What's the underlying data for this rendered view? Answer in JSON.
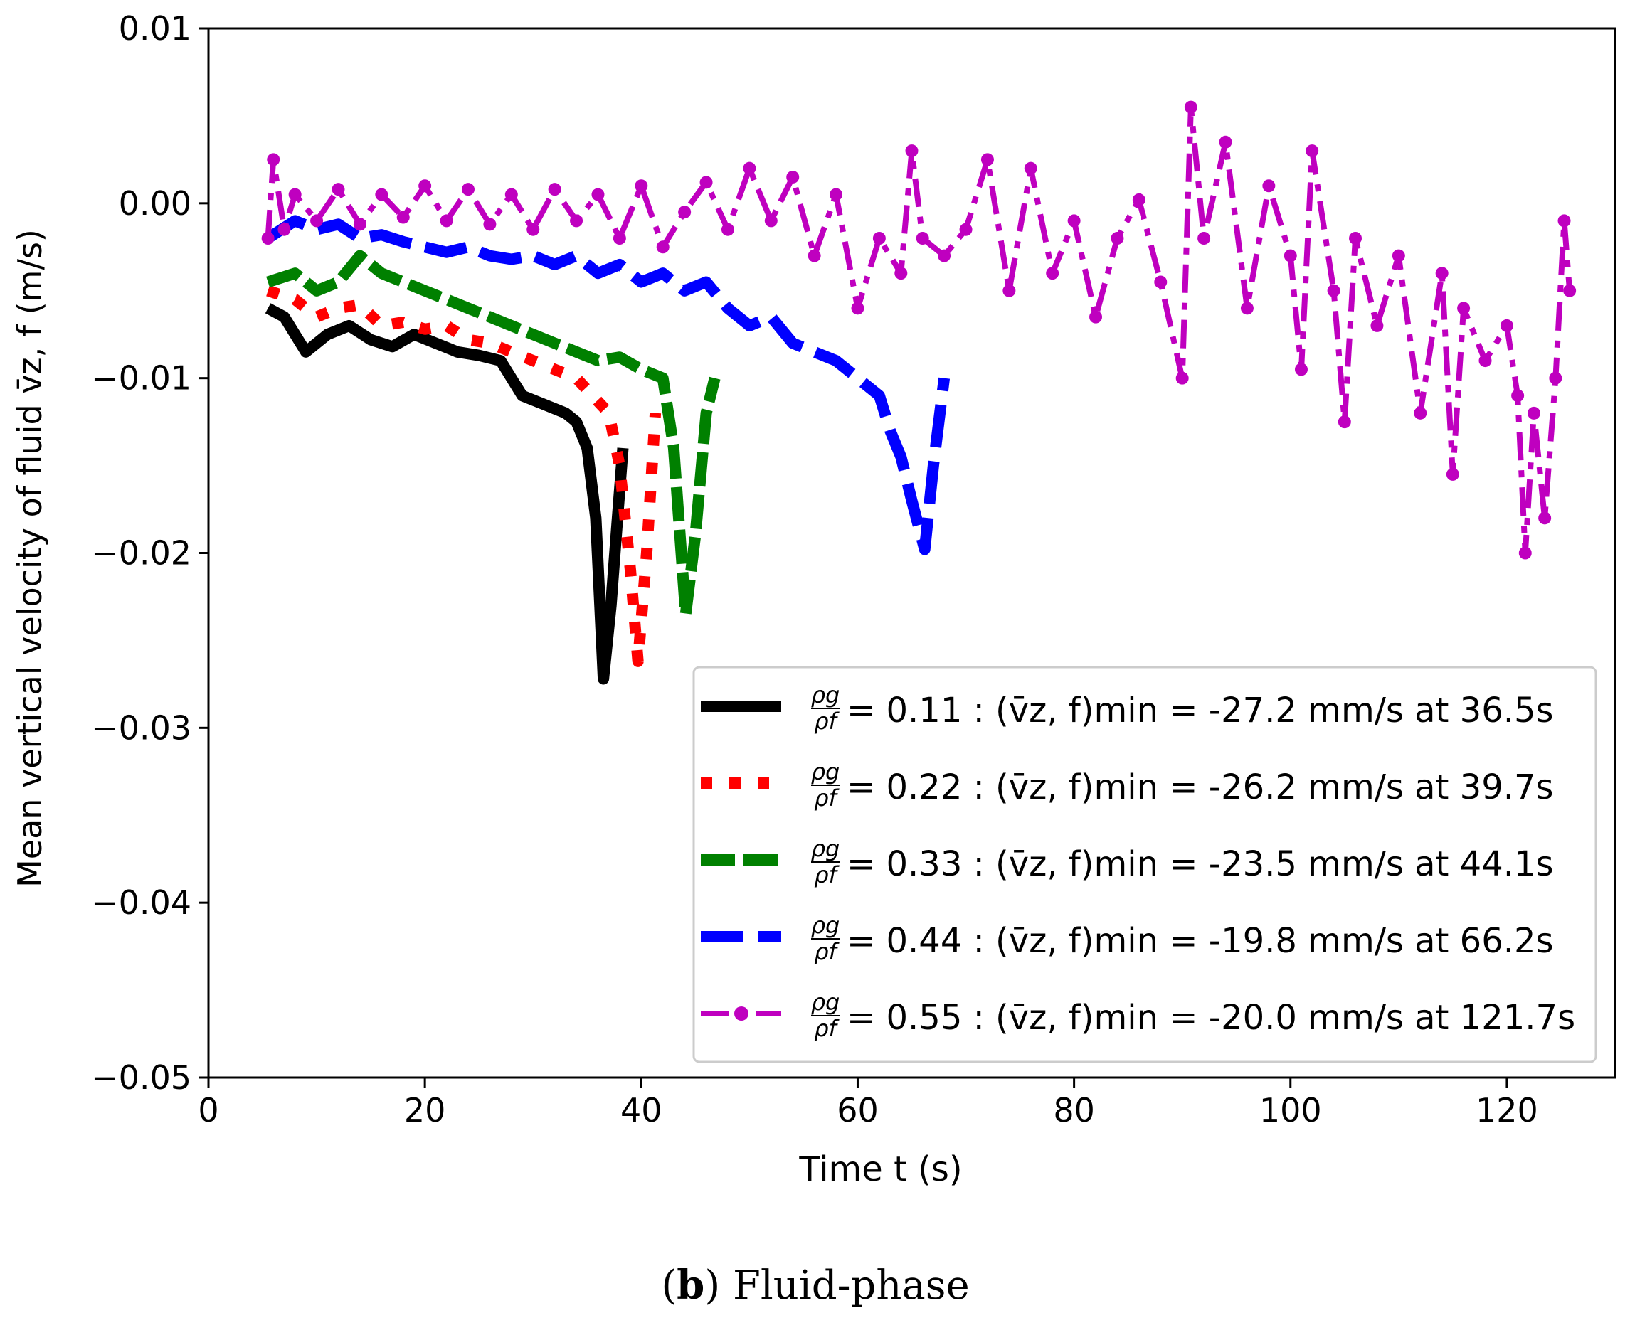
{
  "chart_data": {
    "type": "line",
    "xlabel": "Time t (s)",
    "ylabel": "Mean vertical velocity of fluid v̄z, f (m/s)",
    "xlim": [
      0,
      130
    ],
    "ylim": [
      -0.05,
      0.01
    ],
    "x_ticks": [
      0,
      20,
      40,
      60,
      80,
      100,
      120
    ],
    "y_ticks": [
      0.01,
      0.0,
      -0.01,
      -0.02,
      -0.03,
      -0.04,
      -0.05
    ],
    "x_tick_labels": [
      "0",
      "20",
      "40",
      "60",
      "80",
      "100",
      "120"
    ],
    "y_tick_labels": [
      "0.01",
      "0.00",
      "−0.01",
      "−0.02",
      "−0.03",
      "−0.04",
      "−0.05"
    ],
    "grid": false,
    "legend_position": "lower-right",
    "series": [
      {
        "name": "ρg/ρf = 0.11 : (v̄z,f)min = -27.2 mm/s at 36.5s",
        "ratio": "0.11",
        "vmin": "-27.2 mm/s",
        "tmin": "36.5s",
        "color": "#000000",
        "style": "solid",
        "points": [
          [
            5.5,
            -0.006
          ],
          [
            7,
            -0.0065
          ],
          [
            9,
            -0.0085
          ],
          [
            11,
            -0.0075
          ],
          [
            13,
            -0.007
          ],
          [
            15,
            -0.0078
          ],
          [
            17,
            -0.0082
          ],
          [
            19,
            -0.0075
          ],
          [
            21,
            -0.008
          ],
          [
            23,
            -0.0085
          ],
          [
            25,
            -0.0087
          ],
          [
            27,
            -0.009
          ],
          [
            29,
            -0.011
          ],
          [
            31,
            -0.0115
          ],
          [
            33,
            -0.012
          ],
          [
            34,
            -0.0125
          ],
          [
            35,
            -0.014
          ],
          [
            35.8,
            -0.018
          ],
          [
            36.5,
            -0.0272
          ],
          [
            37.2,
            -0.023
          ],
          [
            37.8,
            -0.018
          ],
          [
            38.3,
            -0.014
          ]
        ]
      },
      {
        "name": "ρg/ρf = 0.22 : (v̄z,f)min = -26.2 mm/s at 39.7s",
        "ratio": "0.22",
        "vmin": "-26.2 mm/s",
        "tmin": "39.7s",
        "color": "#ff0000",
        "style": "dotted",
        "points": [
          [
            5.5,
            -0.005
          ],
          [
            8,
            -0.0055
          ],
          [
            10,
            -0.0065
          ],
          [
            12,
            -0.006
          ],
          [
            14,
            -0.0058
          ],
          [
            16,
            -0.007
          ],
          [
            18,
            -0.0068
          ],
          [
            20,
            -0.0072
          ],
          [
            22,
            -0.007
          ],
          [
            24,
            -0.0078
          ],
          [
            26,
            -0.008
          ],
          [
            28,
            -0.0085
          ],
          [
            30,
            -0.009
          ],
          [
            32,
            -0.0095
          ],
          [
            34,
            -0.01
          ],
          [
            35.5,
            -0.011
          ],
          [
            37,
            -0.012
          ],
          [
            38,
            -0.015
          ],
          [
            39,
            -0.021
          ],
          [
            39.7,
            -0.0262
          ],
          [
            40.5,
            -0.02
          ],
          [
            41.3,
            -0.012
          ]
        ]
      },
      {
        "name": "ρg/ρf = 0.33 : (v̄z,f)min = -23.5 mm/s at 44.1s",
        "ratio": "0.33",
        "vmin": "-23.5 mm/s",
        "tmin": "44.1s",
        "color": "#008000",
        "style": "dashed",
        "points": [
          [
            5.5,
            -0.0045
          ],
          [
            8,
            -0.004
          ],
          [
            10,
            -0.005
          ],
          [
            12,
            -0.0045
          ],
          [
            14,
            -0.003
          ],
          [
            16,
            -0.004
          ],
          [
            18,
            -0.0045
          ],
          [
            20,
            -0.005
          ],
          [
            22,
            -0.0055
          ],
          [
            24,
            -0.006
          ],
          [
            26,
            -0.0065
          ],
          [
            28,
            -0.007
          ],
          [
            30,
            -0.0075
          ],
          [
            32,
            -0.008
          ],
          [
            34,
            -0.0085
          ],
          [
            36,
            -0.009
          ],
          [
            38,
            -0.0088
          ],
          [
            40,
            -0.0095
          ],
          [
            42,
            -0.01
          ],
          [
            43,
            -0.014
          ],
          [
            44.1,
            -0.0235
          ],
          [
            45,
            -0.019
          ],
          [
            46,
            -0.012
          ],
          [
            46.8,
            -0.01
          ]
        ]
      },
      {
        "name": "ρg/ρf = 0.44 : (v̄z,f)min = -19.8 mm/s at 66.2s",
        "ratio": "0.44",
        "vmin": "-19.8 mm/s",
        "tmin": "66.2s",
        "color": "#0000ff",
        "style": "dashed",
        "points": [
          [
            5.5,
            -0.002
          ],
          [
            8,
            -0.001
          ],
          [
            10,
            -0.0015
          ],
          [
            12,
            -0.0012
          ],
          [
            14,
            -0.002
          ],
          [
            16,
            -0.0018
          ],
          [
            18,
            -0.0022
          ],
          [
            20,
            -0.0025
          ],
          [
            22,
            -0.0028
          ],
          [
            24,
            -0.0025
          ],
          [
            26,
            -0.003
          ],
          [
            28,
            -0.0032
          ],
          [
            30,
            -0.003
          ],
          [
            32,
            -0.0035
          ],
          [
            34,
            -0.003
          ],
          [
            36,
            -0.004
          ],
          [
            38,
            -0.0035
          ],
          [
            40,
            -0.0045
          ],
          [
            42,
            -0.004
          ],
          [
            44,
            -0.005
          ],
          [
            46,
            -0.0045
          ],
          [
            48,
            -0.006
          ],
          [
            50,
            -0.007
          ],
          [
            52,
            -0.0065
          ],
          [
            54,
            -0.008
          ],
          [
            56,
            -0.0085
          ],
          [
            58,
            -0.009
          ],
          [
            60,
            -0.01
          ],
          [
            62,
            -0.011
          ],
          [
            63,
            -0.013
          ],
          [
            64,
            -0.0145
          ],
          [
            65,
            -0.017
          ],
          [
            66.2,
            -0.0198
          ],
          [
            67,
            -0.015
          ],
          [
            68,
            -0.01
          ]
        ]
      },
      {
        "name": "ρg/ρf = 0.55 : (v̄z,f)min = -20.0 mm/s at 121.7s",
        "ratio": "0.55",
        "vmin": "-20.0 mm/s",
        "tmin": "121.7s",
        "color": "#bf00bf",
        "style": "dashdot-marker",
        "points": [
          [
            5.5,
            -0.002
          ],
          [
            6,
            0.0025
          ],
          [
            7,
            -0.0015
          ],
          [
            8,
            0.0005
          ],
          [
            10,
            -0.001
          ],
          [
            12,
            0.0008
          ],
          [
            14,
            -0.0012
          ],
          [
            16,
            0.0005
          ],
          [
            18,
            -0.0008
          ],
          [
            20,
            0.001
          ],
          [
            22,
            -0.001
          ],
          [
            24,
            0.0008
          ],
          [
            26,
            -0.0012
          ],
          [
            28,
            0.0005
          ],
          [
            30,
            -0.0015
          ],
          [
            32,
            0.0008
          ],
          [
            34,
            -0.001
          ],
          [
            36,
            0.0005
          ],
          [
            38,
            -0.002
          ],
          [
            40,
            0.001
          ],
          [
            42,
            -0.0025
          ],
          [
            44,
            -0.0005
          ],
          [
            46,
            0.0012
          ],
          [
            48,
            -0.0015
          ],
          [
            50,
            0.002
          ],
          [
            52,
            -0.001
          ],
          [
            54,
            0.0015
          ],
          [
            56,
            -0.003
          ],
          [
            58,
            0.0005
          ],
          [
            60,
            -0.006
          ],
          [
            62,
            -0.002
          ],
          [
            64,
            -0.004
          ],
          [
            65,
            0.003
          ],
          [
            66,
            -0.002
          ],
          [
            68,
            -0.003
          ],
          [
            70,
            -0.0015
          ],
          [
            72,
            0.0025
          ],
          [
            74,
            -0.005
          ],
          [
            76,
            0.002
          ],
          [
            78,
            -0.004
          ],
          [
            80,
            -0.001
          ],
          [
            82,
            -0.0065
          ],
          [
            84,
            -0.002
          ],
          [
            86,
            0.0002
          ],
          [
            88,
            -0.0045
          ],
          [
            90,
            -0.01
          ],
          [
            90.8,
            0.0055
          ],
          [
            92,
            -0.002
          ],
          [
            94,
            0.0035
          ],
          [
            96,
            -0.006
          ],
          [
            98,
            0.001
          ],
          [
            100,
            -0.003
          ],
          [
            101,
            -0.0095
          ],
          [
            102,
            0.003
          ],
          [
            104,
            -0.005
          ],
          [
            105,
            -0.0125
          ],
          [
            106,
            -0.002
          ],
          [
            108,
            -0.007
          ],
          [
            110,
            -0.003
          ],
          [
            112,
            -0.012
          ],
          [
            114,
            -0.004
          ],
          [
            115,
            -0.0155
          ],
          [
            116,
            -0.006
          ],
          [
            118,
            -0.009
          ],
          [
            120,
            -0.007
          ],
          [
            121,
            -0.011
          ],
          [
            121.7,
            -0.02
          ],
          [
            122.5,
            -0.012
          ],
          [
            123.5,
            -0.018
          ],
          [
            124.5,
            -0.01
          ],
          [
            125.3,
            -0.001
          ],
          [
            125.8,
            -0.005
          ]
        ]
      }
    ]
  },
  "caption": {
    "label": "b",
    "text": "Fluid-phase"
  }
}
